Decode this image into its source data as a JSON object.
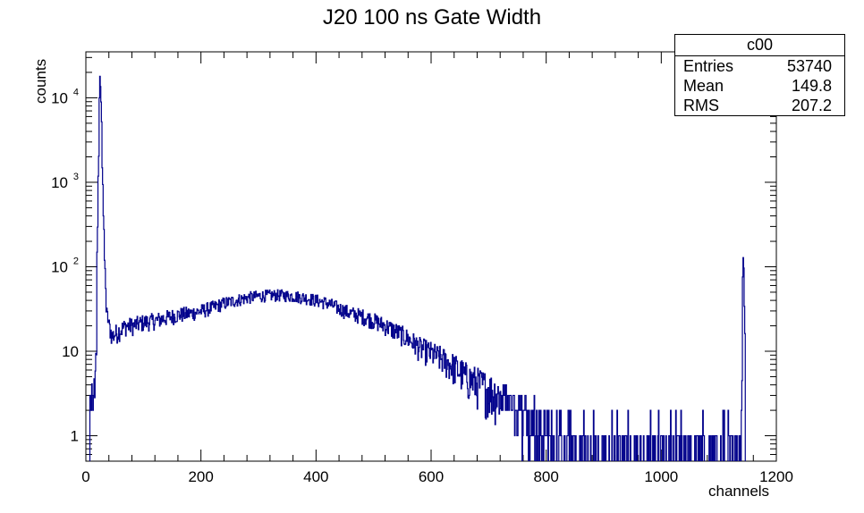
{
  "chart_data": {
    "type": "histogram",
    "title": "J20 100 ns Gate Width",
    "xlabel": "channels",
    "ylabel": "counts",
    "xlim": [
      0,
      1200
    ],
    "ylim": [
      0.5,
      35000
    ],
    "yscale": "log",
    "grid": false,
    "line_color": "#00008b",
    "x_ticks": [
      "0",
      "200",
      "400",
      "600",
      "800",
      "1000",
      "1200"
    ],
    "y_ticks": [
      {
        "value": 1,
        "label": "1"
      },
      {
        "value": 10,
        "label": "10"
      },
      {
        "value": 100,
        "label": "10",
        "exp": "2"
      },
      {
        "value": 1000,
        "label": "10",
        "exp": "3"
      },
      {
        "value": 10000,
        "label": "10",
        "exp": "4"
      }
    ],
    "series": [
      {
        "bin_width": 1,
        "x": [
          0,
          5,
          10,
          13,
          16,
          18,
          20,
          22,
          24,
          26,
          28,
          30,
          32,
          35,
          40,
          45,
          50,
          60,
          70,
          80,
          100,
          120,
          140,
          160,
          180,
          200,
          220,
          240,
          260,
          280,
          300,
          320,
          340,
          360,
          380,
          400,
          420,
          440,
          460,
          480,
          500,
          520,
          540,
          560,
          580,
          600,
          620,
          640,
          660,
          680,
          700,
          720,
          740,
          760,
          780,
          800,
          820,
          840,
          860,
          880,
          900,
          920,
          940,
          960,
          980,
          1000,
          1020,
          1040,
          1060,
          1080,
          1100,
          1120,
          1135,
          1140,
          1142,
          1144,
          1146,
          1150
        ],
        "values": [
          0,
          1,
          3,
          2,
          6,
          10,
          300,
          2000,
          18000,
          9000,
          1500,
          400,
          120,
          30,
          20,
          15,
          16,
          18,
          20,
          20,
          22,
          23,
          25,
          27,
          28,
          30,
          33,
          37,
          40,
          43,
          45,
          46,
          46,
          45,
          43,
          40,
          37,
          32,
          28,
          26,
          23,
          20,
          17,
          14,
          11,
          9.5,
          8,
          6.5,
          5,
          4.2,
          3.5,
          3,
          2.5,
          2,
          1.7,
          1.5,
          1.3,
          1.2,
          1,
          1,
          0.9,
          0.8,
          0.8,
          0.8,
          0.7,
          0.7,
          0.7,
          0.7,
          0.7,
          0.7,
          0.7,
          0.7,
          1,
          3,
          140,
          40,
          0,
          0
        ]
      }
    ]
  },
  "stats_box": {
    "name": "c00",
    "rows": [
      {
        "key": "Entries",
        "value": "53740"
      },
      {
        "key": "Mean",
        "value": "149.8"
      },
      {
        "key": "RMS",
        "value": "207.2"
      }
    ]
  }
}
